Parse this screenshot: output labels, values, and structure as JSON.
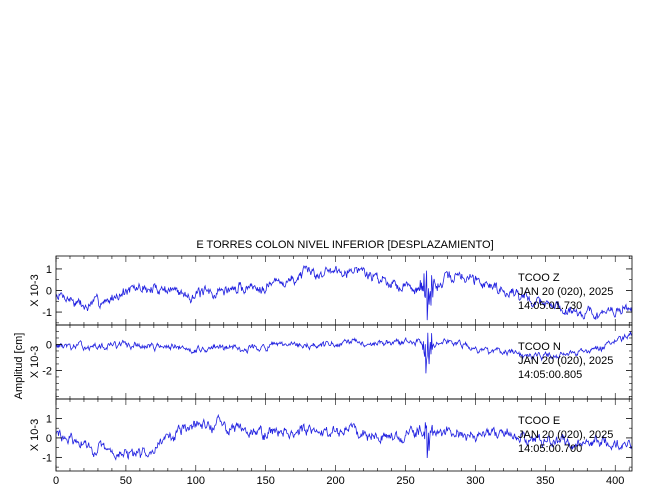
{
  "chart_data": {
    "type": "line",
    "title": "E TORRES COLON NIVEL INFERIOR [DESPLAZAMIENTO]",
    "ylabel": "Amplitud [cm]",
    "xlim": [
      0,
      412
    ],
    "x_ticks": [
      0,
      50,
      100,
      150,
      200,
      250,
      300,
      350,
      400
    ],
    "line_color": "#2020e0",
    "grid": false,
    "panels": [
      {
        "name": "Z",
        "scale_label": "X 10-3",
        "ylim": [
          -1.6,
          1.6
        ],
        "y_ticks": [
          -1,
          0,
          1
        ],
        "annotation": [
          "TCOO   Z",
          "JAN 20 (020), 2025",
          "14:05:01.730"
        ],
        "envelope": [
          [
            0,
            -0.3
          ],
          [
            10,
            -0.4
          ],
          [
            20,
            -0.8
          ],
          [
            40,
            -0.3
          ],
          [
            60,
            0.1
          ],
          [
            80,
            0.1
          ],
          [
            100,
            -0.2
          ],
          [
            120,
            0.0
          ],
          [
            140,
            0.2
          ],
          [
            160,
            0.4
          ],
          [
            180,
            0.7
          ],
          [
            200,
            1.0
          ],
          [
            215,
            1.0
          ],
          [
            225,
            0.7
          ],
          [
            240,
            0.4
          ],
          [
            255,
            0.2
          ],
          [
            262,
            -0.1
          ],
          [
            275,
            0.3
          ],
          [
            285,
            0.7
          ],
          [
            300,
            0.6
          ],
          [
            320,
            0.0
          ],
          [
            340,
            -0.4
          ],
          [
            360,
            -0.8
          ],
          [
            380,
            -1.0
          ],
          [
            392,
            -1.1
          ],
          [
            400,
            -1.0
          ],
          [
            412,
            -0.8
          ]
        ],
        "noise_amp": 0.35,
        "event": {
          "center": 266,
          "width": 10,
          "amp": 1.6
        },
        "seed": 7
      },
      {
        "name": "N",
        "scale_label": "X 10-3",
        "ylim": [
          -4.2,
          1.5
        ],
        "y_ticks": [
          -2,
          0
        ],
        "annotation": [
          "TCOO   N",
          "JAN 20 (020), 2025",
          "14:05:00.805"
        ],
        "envelope": [
          [
            0,
            0.0
          ],
          [
            20,
            -0.2
          ],
          [
            50,
            0.0
          ],
          [
            100,
            -0.3
          ],
          [
            150,
            -0.2
          ],
          [
            200,
            0.0
          ],
          [
            250,
            0.2
          ],
          [
            265,
            0.0
          ],
          [
            280,
            0.3
          ],
          [
            300,
            -0.3
          ],
          [
            320,
            -0.8
          ],
          [
            350,
            -0.9
          ],
          [
            370,
            -0.6
          ],
          [
            390,
            -0.2
          ],
          [
            400,
            0.2
          ],
          [
            412,
            0.6
          ]
        ],
        "noise_amp": 0.35,
        "event": {
          "center": 266,
          "width": 6,
          "amp": 3.8
        },
        "seed": 13
      },
      {
        "name": "E",
        "scale_label": "X 10-3",
        "ylim": [
          -1.7,
          2.0
        ],
        "y_ticks": [
          -1,
          0,
          1
        ],
        "annotation": [
          "TCOO   E",
          "JAN 20 (020), 2025",
          "14:05:00.700"
        ],
        "envelope": [
          [
            0,
            0.2
          ],
          [
            20,
            -0.4
          ],
          [
            40,
            -0.8
          ],
          [
            60,
            -0.9
          ],
          [
            80,
            0.1
          ],
          [
            100,
            0.7
          ],
          [
            120,
            0.6
          ],
          [
            150,
            0.4
          ],
          [
            180,
            0.3
          ],
          [
            210,
            0.4
          ],
          [
            240,
            0.1
          ],
          [
            262,
            0.2
          ],
          [
            275,
            0.2
          ],
          [
            300,
            0.2
          ],
          [
            320,
            0.2
          ],
          [
            340,
            0.0
          ],
          [
            360,
            -0.3
          ],
          [
            380,
            -0.2
          ],
          [
            400,
            -0.3
          ],
          [
            412,
            -0.2
          ]
        ],
        "noise_amp": 0.4,
        "event": {
          "center": 266,
          "width": 8,
          "amp": 1.9
        },
        "seed": 29
      }
    ]
  }
}
